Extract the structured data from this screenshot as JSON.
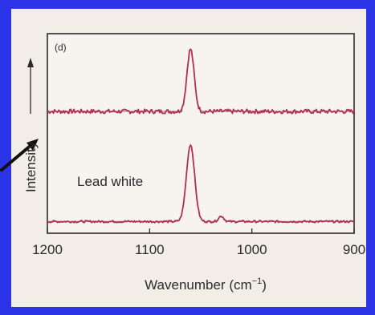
{
  "slide": {
    "background_color": "#2a33e6",
    "panel_color": "#f2ede6"
  },
  "chart_data": {
    "type": "line",
    "panel_label": "(d)",
    "xlabel_main": "Wavenumber (cm",
    "xlabel_sup": "−1",
    "xlabel_close": ")",
    "ylabel": "Intensity",
    "xlim": [
      1200,
      900
    ],
    "x_reversed": true,
    "xticks": [
      1200,
      1100,
      1000,
      900
    ],
    "xtick_labels": [
      "1200",
      "1100",
      "1000",
      "900"
    ],
    "yticks": [],
    "grid": false,
    "annotations": [
      {
        "text": "Lead white",
        "near_series": 1
      }
    ],
    "series_color": "#b0304f",
    "fit_color": "#5a5a5a",
    "series": [
      {
        "baseline": 0.62,
        "peaks": [
          {
            "center": 1060,
            "height": 0.34,
            "width": 3.5
          }
        ],
        "noise": 0.012
      },
      {
        "baseline": 0.02,
        "peaks": [
          {
            "center": 1060,
            "height": 0.42,
            "width": 4
          },
          {
            "center": 1030,
            "height": 0.03,
            "width": 2.5
          }
        ],
        "noise": 0.006
      }
    ]
  }
}
